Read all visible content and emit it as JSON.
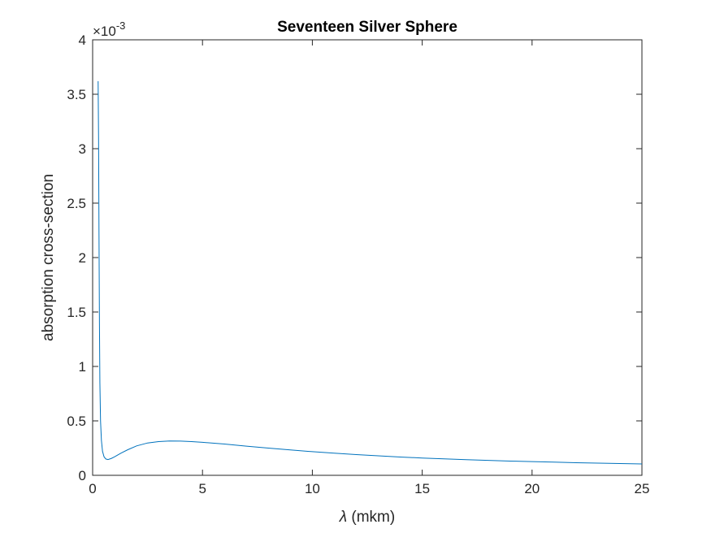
{
  "chart_data": {
    "type": "line",
    "title": "Seventeen Silver Sphere",
    "xlabel_symbol": "λ",
    "xlabel_unit": "(mkm)",
    "ylabel": "absorption cross-section",
    "y_exponent_base": "×10",
    "y_exponent": "-3",
    "xlim": [
      0,
      25
    ],
    "ylim": [
      0,
      4
    ],
    "xticks": [
      0,
      5,
      10,
      15,
      20,
      25
    ],
    "xtick_labels": [
      "0",
      "5",
      "10",
      "15",
      "20",
      "25"
    ],
    "yticks": [
      0,
      0.5,
      1,
      1.5,
      2,
      2.5,
      3,
      3.5,
      4
    ],
    "ytick_labels": [
      "0",
      "0.5",
      "1",
      "1.5",
      "2",
      "2.5",
      "3",
      "3.5",
      "4"
    ],
    "grid": false,
    "line_color": "#0072BD",
    "series": [
      {
        "x": [
          0.25,
          0.27,
          0.29,
          0.31,
          0.33,
          0.36,
          0.4,
          0.45,
          0.52,
          0.6,
          0.7,
          0.85,
          1.0,
          1.3,
          1.6,
          2.0,
          2.5,
          3.0,
          3.5,
          4.0,
          4.5,
          5.0,
          6.0,
          7.0,
          8.0,
          9.0,
          10.0,
          11.0,
          12.0,
          13.0,
          14.0,
          15.0,
          16.0,
          17.0,
          18.0,
          19.0,
          20.0,
          21.0,
          22.0,
          23.0,
          24.0,
          25.0
        ],
        "y": [
          3.62,
          3.1,
          2.2,
          1.4,
          0.85,
          0.5,
          0.32,
          0.22,
          0.17,
          0.15,
          0.145,
          0.155,
          0.17,
          0.205,
          0.235,
          0.27,
          0.297,
          0.31,
          0.315,
          0.314,
          0.31,
          0.303,
          0.287,
          0.268,
          0.25,
          0.233,
          0.217,
          0.203,
          0.19,
          0.179,
          0.168,
          0.159,
          0.151,
          0.144,
          0.137,
          0.131,
          0.126,
          0.121,
          0.116,
          0.112,
          0.108,
          0.104
        ]
      }
    ]
  }
}
